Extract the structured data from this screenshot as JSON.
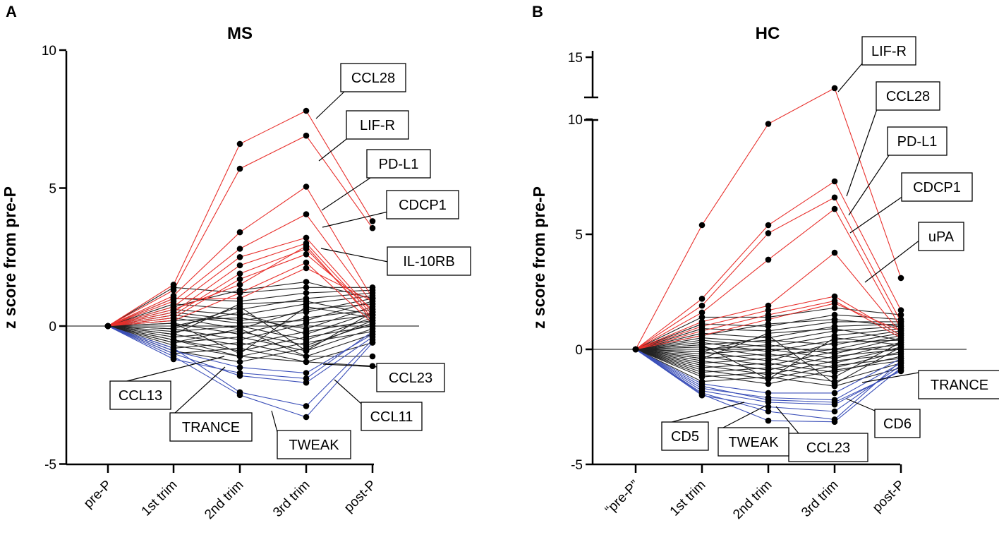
{
  "panels": [
    {
      "letter": "A",
      "chart_data": {
        "type": "line",
        "title": "MS",
        "ylabel": "z score from pre-P",
        "xlabel": "",
        "categories": [
          "pre-P",
          "1st trim",
          "2nd trim",
          "3rd trim",
          "post-P"
        ],
        "ylim": [
          -5,
          10
        ],
        "yticks": [
          "-5",
          "0",
          "5",
          "10"
        ],
        "series": [
          {
            "name": "CCL28",
            "color": "#e8302c",
            "values": [
              0,
              1.5,
              6.6,
              7.8,
              3.8
            ]
          },
          {
            "name": "LIF-R",
            "color": "#e8302c",
            "values": [
              0,
              1.3,
              5.7,
              6.9,
              3.55
            ]
          },
          {
            "name": "PD-L1",
            "color": "#e8302c",
            "values": [
              0,
              1.1,
              3.4,
              5.05,
              1.0
            ]
          },
          {
            "name": "CDCP1",
            "color": "#e8302c",
            "values": [
              0,
              0.9,
              2.8,
              4.05,
              0.8
            ]
          },
          {
            "name": "IL-10RB",
            "color": "#e8302c",
            "values": [
              0,
              0.7,
              2.5,
              3.2,
              0.5
            ]
          },
          {
            "name": "",
            "color": "#e8302c",
            "values": [
              0,
              0.5,
              2.2,
              3.0,
              0.4
            ]
          },
          {
            "name": "",
            "color": "#e8302c",
            "values": [
              0,
              0.4,
              1.9,
              2.8,
              0.3
            ]
          },
          {
            "name": "",
            "color": "#e8302c",
            "values": [
              0,
              0.3,
              1.7,
              2.6,
              0.6
            ]
          },
          {
            "name": "",
            "color": "#e8302c",
            "values": [
              0,
              0.6,
              1.5,
              2.9,
              0.2
            ]
          },
          {
            "name": "",
            "color": "#e8302c",
            "values": [
              0,
              0.2,
              1.2,
              2.3,
              0.1
            ]
          },
          {
            "name": "",
            "color": "#e8302c",
            "values": [
              0,
              1.0,
              1.0,
              2.1,
              0.9
            ]
          },
          {
            "name": "",
            "color": "#222222",
            "values": [
              0,
              1.4,
              1.2,
              1.4,
              1.4
            ]
          },
          {
            "name": "",
            "color": "#222222",
            "values": [
              0,
              1.0,
              0.9,
              1.2,
              1.3
            ]
          },
          {
            "name": "",
            "color": "#222222",
            "values": [
              0,
              0.8,
              0.6,
              1.0,
              1.2
            ]
          },
          {
            "name": "",
            "color": "#222222",
            "values": [
              0,
              0.6,
              0.4,
              0.8,
              1.1
            ]
          },
          {
            "name": "",
            "color": "#222222",
            "values": [
              0,
              0.5,
              0.2,
              0.5,
              1.0
            ]
          },
          {
            "name": "",
            "color": "#222222",
            "values": [
              0,
              0.4,
              0.1,
              0.2,
              0.9
            ]
          },
          {
            "name": "",
            "color": "#222222",
            "values": [
              0,
              0.3,
              -0.1,
              0.6,
              0.8
            ]
          },
          {
            "name": "",
            "color": "#222222",
            "values": [
              0,
              0.2,
              0.3,
              -0.1,
              0.7
            ]
          },
          {
            "name": "",
            "color": "#222222",
            "values": [
              0,
              0.1,
              -0.3,
              0.3,
              0.6
            ]
          },
          {
            "name": "",
            "color": "#222222",
            "values": [
              0,
              0.0,
              0.5,
              -0.3,
              0.5
            ]
          },
          {
            "name": "",
            "color": "#222222",
            "values": [
              0,
              -0.1,
              -0.5,
              0.1,
              0.4
            ]
          },
          {
            "name": "",
            "color": "#222222",
            "values": [
              0,
              -0.2,
              0.0,
              -0.5,
              0.3
            ]
          },
          {
            "name": "",
            "color": "#222222",
            "values": [
              0,
              -0.3,
              -0.7,
              -0.2,
              0.2
            ]
          },
          {
            "name": "",
            "color": "#222222",
            "values": [
              0,
              -0.4,
              -0.2,
              -0.7,
              0.1
            ]
          },
          {
            "name": "",
            "color": "#222222",
            "values": [
              0,
              -0.5,
              -0.9,
              -0.4,
              0.0
            ]
          },
          {
            "name": "",
            "color": "#222222",
            "values": [
              0,
              -0.6,
              -0.4,
              -0.9,
              -0.1
            ]
          },
          {
            "name": "",
            "color": "#222222",
            "values": [
              0,
              -0.7,
              -1.1,
              -0.6,
              -0.2
            ]
          },
          {
            "name": "",
            "color": "#222222",
            "values": [
              0,
              -0.8,
              -0.6,
              -1.1,
              -0.3
            ]
          },
          {
            "name": "",
            "color": "#222222",
            "values": [
              0,
              -0.9,
              -1.3,
              -0.8,
              0.2
            ]
          },
          {
            "name": "",
            "color": "#222222",
            "values": [
              0,
              -1.0,
              -0.8,
              -1.3,
              -0.6
            ]
          },
          {
            "name": "",
            "color": "#222222",
            "values": [
              0,
              0.7,
              1.3,
              1.6,
              1.0
            ]
          },
          {
            "name": "",
            "color": "#222222",
            "values": [
              0,
              -0.3,
              0.8,
              0.9,
              0.4
            ]
          },
          {
            "name": "",
            "color": "#222222",
            "values": [
              0,
              0.1,
              -1.0,
              0.7,
              0.3
            ]
          },
          {
            "name": "",
            "color": "#222222",
            "values": [
              0,
              -0.1,
              0.7,
              -0.9,
              0.5
            ]
          },
          {
            "name": "",
            "color": "#222222",
            "values": [
              0,
              -0.6,
              -0.1,
              -1.1,
              -1.1
            ]
          },
          {
            "name": "CCL23",
            "color": "#222222",
            "values": [
              0,
              -0.5,
              -1.1,
              -1.3,
              -1.45
            ]
          },
          {
            "name": "",
            "color": "#3b4fb8",
            "values": [
              0,
              -0.9,
              -1.5,
              -1.7,
              -0.3
            ]
          },
          {
            "name": "CCL13",
            "color": "#3b4fb8",
            "values": [
              0,
              -1.2,
              -1.7,
              -1.9,
              -0.2
            ]
          },
          {
            "name": "CCL11",
            "color": "#3b4fb8",
            "values": [
              0,
              -1.0,
              -1.8,
              -2.05,
              -0.4
            ]
          },
          {
            "name": "TRANCE",
            "color": "#3b4fb8",
            "values": [
              0,
              -0.8,
              -2.4,
              -2.9,
              -0.5
            ]
          },
          {
            "name": "TWEAK",
            "color": "#3b4fb8",
            "values": [
              0,
              -1.1,
              -2.5,
              -3.3,
              -0.6
            ]
          }
        ],
        "callouts": [
          "CCL28",
          "LIF-R",
          "PD-L1",
          "CDCP1",
          "IL-10RB",
          "CCL13",
          "TRANCE",
          "TWEAK",
          "CCL11",
          "CCL23"
        ]
      }
    },
    {
      "letter": "B",
      "chart_data": {
        "type": "line",
        "title": "HC",
        "ylabel": "z score from pre-P",
        "xlabel": "",
        "categories": [
          "“pre-P”",
          "1st trim",
          "2nd trim",
          "3rd trim",
          "post-P"
        ],
        "ylim": [
          -5,
          15
        ],
        "yticks": [
          "-5",
          "0",
          "5",
          "10",
          "15"
        ],
        "axis_break": [
          10,
          12.4
        ],
        "series": [
          {
            "name": "LIF-R",
            "color": "#e8302c",
            "values": [
              0,
              5.4,
              9.8,
              13.0,
              3.1
            ]
          },
          {
            "name": "CCL28",
            "color": "#e8302c",
            "values": [
              0,
              2.2,
              5.4,
              7.3,
              1.7
            ]
          },
          {
            "name": "PD-L1",
            "color": "#e8302c",
            "values": [
              0,
              1.9,
              5.05,
              6.6,
              1.2
            ]
          },
          {
            "name": "CDCP1",
            "color": "#e8302c",
            "values": [
              0,
              1.6,
              3.9,
              6.1,
              0.9
            ]
          },
          {
            "name": "uPA",
            "color": "#e8302c",
            "values": [
              0,
              1.2,
              1.9,
              4.2,
              0.7
            ]
          },
          {
            "name": "",
            "color": "#e8302c",
            "values": [
              0,
              1.0,
              1.7,
              2.3,
              0.6
            ]
          },
          {
            "name": "",
            "color": "#e8302c",
            "values": [
              0,
              0.8,
              1.5,
              2.1,
              0.5
            ]
          },
          {
            "name": "",
            "color": "#e8302c",
            "values": [
              0,
              0.6,
              1.3,
              2.0,
              0.8
            ]
          },
          {
            "name": "",
            "color": "#222222",
            "values": [
              0,
              1.4,
              1.4,
              1.8,
              1.5
            ]
          },
          {
            "name": "",
            "color": "#222222",
            "values": [
              0,
              1.1,
              1.0,
              1.5,
              1.3
            ]
          },
          {
            "name": "",
            "color": "#222222",
            "values": [
              0,
              0.9,
              0.8,
              1.2,
              1.2
            ]
          },
          {
            "name": "",
            "color": "#222222",
            "values": [
              0,
              0.7,
              0.5,
              1.0,
              1.1
            ]
          },
          {
            "name": "",
            "color": "#222222",
            "values": [
              0,
              0.5,
              0.3,
              0.8,
              1.0
            ]
          },
          {
            "name": "",
            "color": "#222222",
            "values": [
              0,
              0.4,
              0.1,
              0.6,
              0.9
            ]
          },
          {
            "name": "",
            "color": "#222222",
            "values": [
              0,
              0.3,
              -0.1,
              0.4,
              0.8
            ]
          },
          {
            "name": "",
            "color": "#222222",
            "values": [
              0,
              0.2,
              0.4,
              0.2,
              0.7
            ]
          },
          {
            "name": "",
            "color": "#222222",
            "values": [
              0,
              0.1,
              -0.3,
              0.0,
              0.6
            ]
          },
          {
            "name": "",
            "color": "#222222",
            "values": [
              0,
              0.0,
              0.2,
              -0.2,
              0.5
            ]
          },
          {
            "name": "",
            "color": "#222222",
            "values": [
              0,
              -0.1,
              -0.5,
              0.3,
              0.4
            ]
          },
          {
            "name": "",
            "color": "#222222",
            "values": [
              0,
              -0.2,
              0.0,
              -0.4,
              0.3
            ]
          },
          {
            "name": "",
            "color": "#222222",
            "values": [
              0,
              -0.3,
              -0.7,
              -0.1,
              0.2
            ]
          },
          {
            "name": "",
            "color": "#222222",
            "values": [
              0,
              -0.4,
              -0.2,
              -0.6,
              0.1
            ]
          },
          {
            "name": "",
            "color": "#222222",
            "values": [
              0,
              -0.5,
              -0.9,
              -0.3,
              0.0
            ]
          },
          {
            "name": "",
            "color": "#222222",
            "values": [
              0,
              -0.6,
              -0.4,
              -0.8,
              -0.1
            ]
          },
          {
            "name": "",
            "color": "#222222",
            "values": [
              0,
              -0.7,
              -1.1,
              -0.5,
              -0.2
            ]
          },
          {
            "name": "",
            "color": "#222222",
            "values": [
              0,
              -0.8,
              -0.6,
              -1.0,
              -0.3
            ]
          },
          {
            "name": "",
            "color": "#222222",
            "values": [
              0,
              -0.9,
              -1.3,
              -0.7,
              -0.4
            ]
          },
          {
            "name": "",
            "color": "#222222",
            "values": [
              0,
              -1.0,
              -0.8,
              -1.2,
              0.3
            ]
          },
          {
            "name": "",
            "color": "#222222",
            "values": [
              0,
              -1.1,
              -1.5,
              -0.9,
              -0.5
            ]
          },
          {
            "name": "",
            "color": "#222222",
            "values": [
              0,
              -1.2,
              -1.0,
              -1.4,
              -0.6
            ]
          },
          {
            "name": "",
            "color": "#222222",
            "values": [
              0,
              0.6,
              1.1,
              1.3,
              1.0
            ]
          },
          {
            "name": "",
            "color": "#222222",
            "values": [
              0,
              -0.4,
              0.7,
              0.9,
              0.4
            ]
          },
          {
            "name": "",
            "color": "#222222",
            "values": [
              0,
              0.2,
              -1.3,
              0.5,
              0.2
            ]
          },
          {
            "name": "",
            "color": "#222222",
            "values": [
              0,
              -0.1,
              0.6,
              -1.5,
              0.1
            ]
          },
          {
            "name": "",
            "color": "#222222",
            "values": [
              0,
              -1.4,
              -1.2,
              -1.6,
              -0.8
            ]
          },
          {
            "name": "",
            "color": "#3b4fb8",
            "values": [
              0,
              -1.5,
              -1.9,
              -1.9,
              -0.4
            ]
          },
          {
            "name": "",
            "color": "#3b4fb8",
            "values": [
              0,
              -1.7,
              -2.1,
              -2.2,
              -0.6
            ]
          },
          {
            "name": "CD6",
            "color": "#3b4fb8",
            "values": [
              0,
              -1.8,
              -2.3,
              -2.4,
              -0.9
            ]
          },
          {
            "name": "TRANCE",
            "color": "#3b4fb8",
            "values": [
              0,
              -1.6,
              -2.2,
              -2.3,
              -0.95
            ]
          },
          {
            "name": "CD5",
            "color": "#3b4fb8",
            "values": [
              0,
              -2.0,
              -2.5,
              -2.7,
              -0.7
            ]
          },
          {
            "name": "CCL23",
            "color": "#3b4fb8",
            "values": [
              0,
              -1.9,
              -2.7,
              -3.05,
              -0.5
            ]
          },
          {
            "name": "TWEAK",
            "color": "#3b4fb8",
            "values": [
              0,
              -1.95,
              -3.1,
              -3.15,
              -0.8
            ]
          }
        ],
        "callouts": [
          "LIF-R",
          "CCL28",
          "PD-L1",
          "CDCP1",
          "uPA",
          "TRANCE",
          "CD6",
          "CCL23",
          "TWEAK",
          "CD5"
        ]
      }
    }
  ]
}
